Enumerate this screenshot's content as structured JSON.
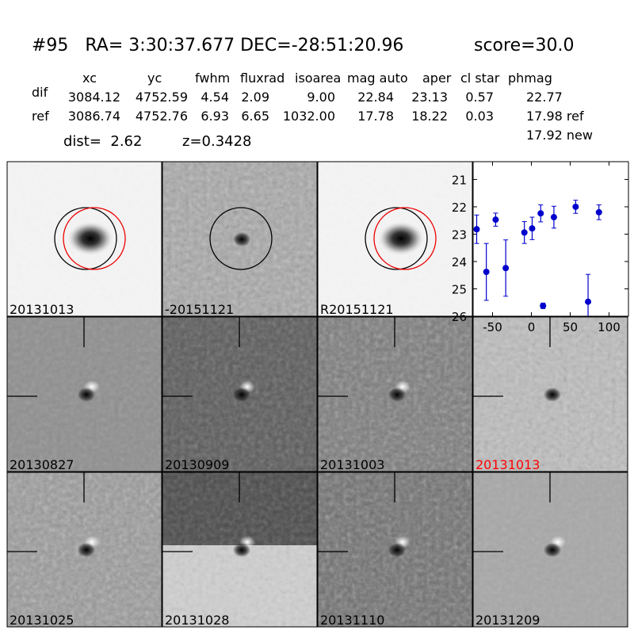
{
  "header": {
    "title": "#95   RA= 3:30:37.677 DEC=-28:51:20.96",
    "score": "score=30.0"
  },
  "table": {
    "columns": [
      "xc",
      "yc",
      "fwhm",
      "fluxrad",
      "isoarea",
      "mag auto",
      "aper",
      "cl star",
      "phmag"
    ],
    "rows": [
      {
        "label": "dif",
        "cells": [
          "3084.12",
          "4752.59",
          "4.54",
          "2.09",
          "9.00",
          "22.84",
          "23.13",
          "0.57",
          "22.77"
        ]
      },
      {
        "label": "ref",
        "cells": [
          "3086.74",
          "4752.76",
          "6.93",
          "6.65",
          "1032.00",
          "17.78",
          "18.22",
          "0.03",
          "17.98 ref"
        ]
      }
    ],
    "extra": "17.92 new"
  },
  "footer": {
    "dist": "dist=  2.62",
    "z": "z=0.3428"
  },
  "panels": [
    {
      "label": "20131013"
    },
    {
      "label": "-20151121"
    },
    {
      "label": "R20151121"
    },
    {
      "label": "20130827"
    },
    {
      "label": "20130909"
    },
    {
      "label": "20131003"
    },
    {
      "label": "20131013",
      "color": "#ff0000"
    },
    {
      "label": "20131025"
    },
    {
      "label": "20131028"
    },
    {
      "label": "20131110"
    },
    {
      "label": "20131209"
    }
  ],
  "chart_data": {
    "type": "errorbar",
    "x": [
      -70.4,
      -58,
      -46,
      -33,
      -9,
      1,
      12,
      15,
      29,
      57,
      73,
      87
    ],
    "series": [
      {
        "color": "#0000cc",
        "values": [
          22.82,
          24.38,
          22.47,
          24.24,
          22.94,
          22.79,
          22.24,
          25.62,
          22.38,
          22.0,
          25.47,
          22.2
        ],
        "errors": [
          0.52,
          1.04,
          0.24,
          1.03,
          0.4,
          0.41,
          0.31,
          0.1,
          0.4,
          0.24,
          1.0,
          0.27
        ]
      }
    ],
    "xlim": [
      -75,
      125
    ],
    "ylim": [
      26,
      20.35
    ],
    "xticks": [
      -50,
      0,
      50,
      100
    ],
    "yticks": [
      21,
      22,
      23,
      24,
      25,
      26
    ]
  }
}
